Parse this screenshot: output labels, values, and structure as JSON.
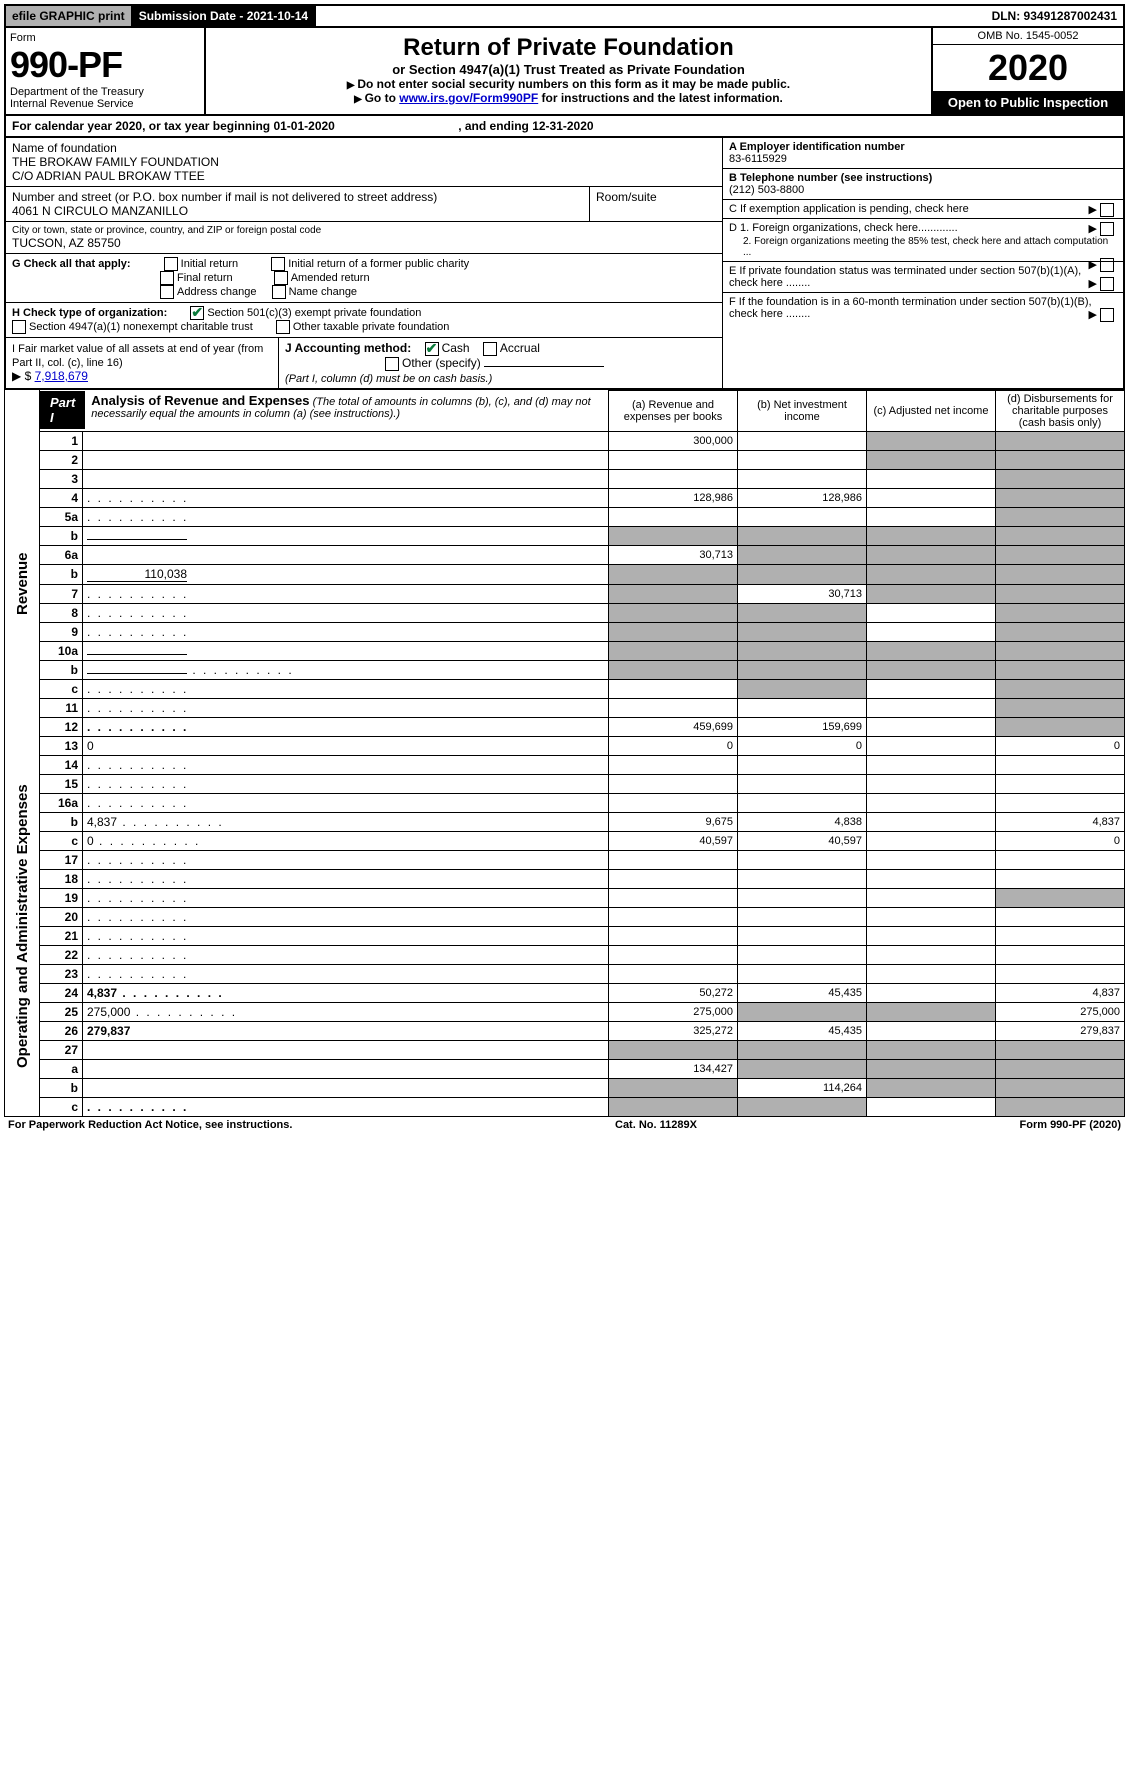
{
  "topbar": {
    "efile": "efile GRAPHIC print",
    "submission": "Submission Date - 2021-10-14",
    "dln": "DLN: 93491287002431"
  },
  "header": {
    "form_word": "Form",
    "form_no": "990-PF",
    "dept": "Department of the Treasury",
    "irs": "Internal Revenue Service",
    "title": "Return of Private Foundation",
    "subtitle": "or Section 4947(a)(1) Trust Treated as Private Foundation",
    "note1": "Do not enter social security numbers on this form as it may be made public.",
    "note2_a": "Go to ",
    "note2_link": "www.irs.gov/Form990PF",
    "note2_b": " for instructions and the latest information.",
    "omb": "OMB No. 1545-0052",
    "year": "2020",
    "open": "Open to Public Inspection"
  },
  "cal": {
    "text_a": "For calendar year 2020, or tax year beginning ",
    "begin": "01-01-2020",
    "text_b": " , and ending ",
    "end": "12-31-2020"
  },
  "foundation": {
    "name_label": "Name of foundation",
    "name1": "THE BROKAW FAMILY FOUNDATION",
    "name2": "C/O ADRIAN PAUL BROKAW TTEE",
    "addr_label": "Number and street (or P.O. box number if mail is not delivered to street address)",
    "addr": "4061 N CIRCULO MANZANILLO",
    "room_label": "Room/suite",
    "city_label": "City or town, state or province, country, and ZIP or foreign postal code",
    "city": "TUCSON, AZ  85750",
    "ein_label": "A Employer identification number",
    "ein": "83-6115929",
    "tel_label": "B Telephone number (see instructions)",
    "tel": "(212) 503-8800",
    "c_label": "C If exemption application is pending, check here",
    "d1_label": "D 1. Foreign organizations, check here.............",
    "d2_label": "2. Foreign organizations meeting the 85% test, check here and attach computation ...",
    "e_label": "E  If private foundation status was terminated under section 507(b)(1)(A), check here ........",
    "f_label": "F  If the foundation is in a 60-month termination under section 507(b)(1)(B), check here ........"
  },
  "g": {
    "label": "G Check all that apply:",
    "opt1": "Initial return",
    "opt2": "Final return",
    "opt3": "Address change",
    "opt4": "Initial return of a former public charity",
    "opt5": "Amended return",
    "opt6": "Name change"
  },
  "h": {
    "label": "H Check type of organization:",
    "opt1": "Section 501(c)(3) exempt private foundation",
    "opt2": "Section 4947(a)(1) nonexempt charitable trust",
    "opt3": "Other taxable private foundation"
  },
  "i": {
    "label": "I Fair market value of all assets at end of year (from Part II, col. (c), line 16)",
    "value_prefix": "▶ $",
    "value": "7,918,679"
  },
  "j": {
    "label": "J Accounting method:",
    "opt1": "Cash",
    "opt2": "Accrual",
    "opt3": "Other (specify)",
    "note": "(Part I, column (d) must be on cash basis.)"
  },
  "part1": {
    "label": "Part I",
    "title": "Analysis of Revenue and Expenses",
    "note": "(The total of amounts in columns (b), (c), and (d) may not necessarily equal the amounts in column (a) (see instructions).)",
    "col_a": "(a)  Revenue and expenses per books",
    "col_b": "(b)  Net investment income",
    "col_c": "(c)  Adjusted net income",
    "col_d": "(d)  Disbursements for charitable purposes (cash basis only)"
  },
  "side": {
    "revenue": "Revenue",
    "expenses": "Operating and Administrative Expenses"
  },
  "rows": [
    {
      "n": "1",
      "d": "",
      "a": "300,000",
      "b": "",
      "c": "",
      "sc": true,
      "sd": true
    },
    {
      "n": "2",
      "d": "",
      "a": "",
      "b": "",
      "c": "",
      "sc": true,
      "sd": true,
      "bold": false
    },
    {
      "n": "3",
      "d": "",
      "a": "",
      "b": "",
      "c": "",
      "sd": true
    },
    {
      "n": "4",
      "d": "",
      "a": "128,986",
      "b": "128,986",
      "c": "",
      "sd": true,
      "dots": true
    },
    {
      "n": "5a",
      "d": "",
      "a": "",
      "b": "",
      "c": "",
      "sd": true,
      "dots": true
    },
    {
      "n": "b",
      "d": "",
      "a": "",
      "b": "",
      "c": "",
      "sa": true,
      "sb": true,
      "sc": true,
      "sd": true,
      "inline": true
    },
    {
      "n": "6a",
      "d": "",
      "a": "30,713",
      "b": "",
      "c": "",
      "sb": true,
      "sc": true,
      "sd": true
    },
    {
      "n": "b",
      "d": "",
      "a": "",
      "b": "",
      "c": "",
      "sa": true,
      "sb": true,
      "sc": true,
      "sd": true,
      "inline": true,
      "inlineval": "110,038"
    },
    {
      "n": "7",
      "d": "",
      "a": "",
      "b": "30,713",
      "c": "",
      "sa": true,
      "sc": true,
      "sd": true,
      "dots": true
    },
    {
      "n": "8",
      "d": "",
      "a": "",
      "b": "",
      "c": "",
      "sa": true,
      "sb": true,
      "sd": true,
      "dots": true
    },
    {
      "n": "9",
      "d": "",
      "a": "",
      "b": "",
      "c": "",
      "sa": true,
      "sb": true,
      "sd": true,
      "dots": true
    },
    {
      "n": "10a",
      "d": "",
      "a": "",
      "b": "",
      "c": "",
      "sa": true,
      "sb": true,
      "sc": true,
      "sd": true,
      "inline": true
    },
    {
      "n": "b",
      "d": "",
      "a": "",
      "b": "",
      "c": "",
      "sa": true,
      "sb": true,
      "sc": true,
      "sd": true,
      "inline": true,
      "dots": true
    },
    {
      "n": "c",
      "d": "",
      "a": "",
      "b": "",
      "c": "",
      "sb": true,
      "sd": true,
      "dots": true
    },
    {
      "n": "11",
      "d": "",
      "a": "",
      "b": "",
      "c": "",
      "sd": true,
      "dots": true
    },
    {
      "n": "12",
      "d": "",
      "a": "459,699",
      "b": "159,699",
      "c": "",
      "sd": true,
      "bold": true,
      "dots": true
    },
    {
      "n": "13",
      "d": "0",
      "a": "0",
      "b": "0",
      "c": ""
    },
    {
      "n": "14",
      "d": "",
      "a": "",
      "b": "",
      "c": "",
      "dots": true
    },
    {
      "n": "15",
      "d": "",
      "a": "",
      "b": "",
      "c": "",
      "dots": true
    },
    {
      "n": "16a",
      "d": "",
      "a": "",
      "b": "",
      "c": "",
      "dots": true
    },
    {
      "n": "b",
      "d": "4,837",
      "a": "9,675",
      "b": "4,838",
      "c": "",
      "dots": true
    },
    {
      "n": "c",
      "d": "0",
      "a": "40,597",
      "b": "40,597",
      "c": "",
      "dots": true
    },
    {
      "n": "17",
      "d": "",
      "a": "",
      "b": "",
      "c": "",
      "dots": true
    },
    {
      "n": "18",
      "d": "",
      "a": "",
      "b": "",
      "c": "",
      "dots": true
    },
    {
      "n": "19",
      "d": "",
      "a": "",
      "b": "",
      "c": "",
      "sd": true,
      "dots": true
    },
    {
      "n": "20",
      "d": "",
      "a": "",
      "b": "",
      "c": "",
      "dots": true
    },
    {
      "n": "21",
      "d": "",
      "a": "",
      "b": "",
      "c": "",
      "dots": true
    },
    {
      "n": "22",
      "d": "",
      "a": "",
      "b": "",
      "c": "",
      "dots": true
    },
    {
      "n": "23",
      "d": "",
      "a": "",
      "b": "",
      "c": "",
      "dots": true
    },
    {
      "n": "24",
      "d": "4,837",
      "a": "50,272",
      "b": "45,435",
      "c": "",
      "bold": true,
      "dots": true
    },
    {
      "n": "25",
      "d": "275,000",
      "a": "275,000",
      "b": "",
      "c": "",
      "sb": true,
      "sc": true,
      "dots": true
    },
    {
      "n": "26",
      "d": "279,837",
      "a": "325,272",
      "b": "45,435",
      "c": "",
      "bold": true
    },
    {
      "n": "27",
      "d": "",
      "a": "",
      "b": "",
      "c": "",
      "sa": true,
      "sb": true,
      "sc": true,
      "sd": true
    },
    {
      "n": "a",
      "d": "",
      "a": "134,427",
      "b": "",
      "c": "",
      "sb": true,
      "sc": true,
      "sd": true,
      "bold": true
    },
    {
      "n": "b",
      "d": "",
      "a": "",
      "b": "114,264",
      "c": "",
      "sa": true,
      "sc": true,
      "sd": true,
      "bold": true
    },
    {
      "n": "c",
      "d": "",
      "a": "",
      "b": "",
      "c": "",
      "sa": true,
      "sb": true,
      "sd": true,
      "bold": true,
      "dots": true
    }
  ],
  "footer": {
    "left": "For Paperwork Reduction Act Notice, see instructions.",
    "mid": "Cat. No. 11289X",
    "right": "Form 990-PF (2020)"
  }
}
